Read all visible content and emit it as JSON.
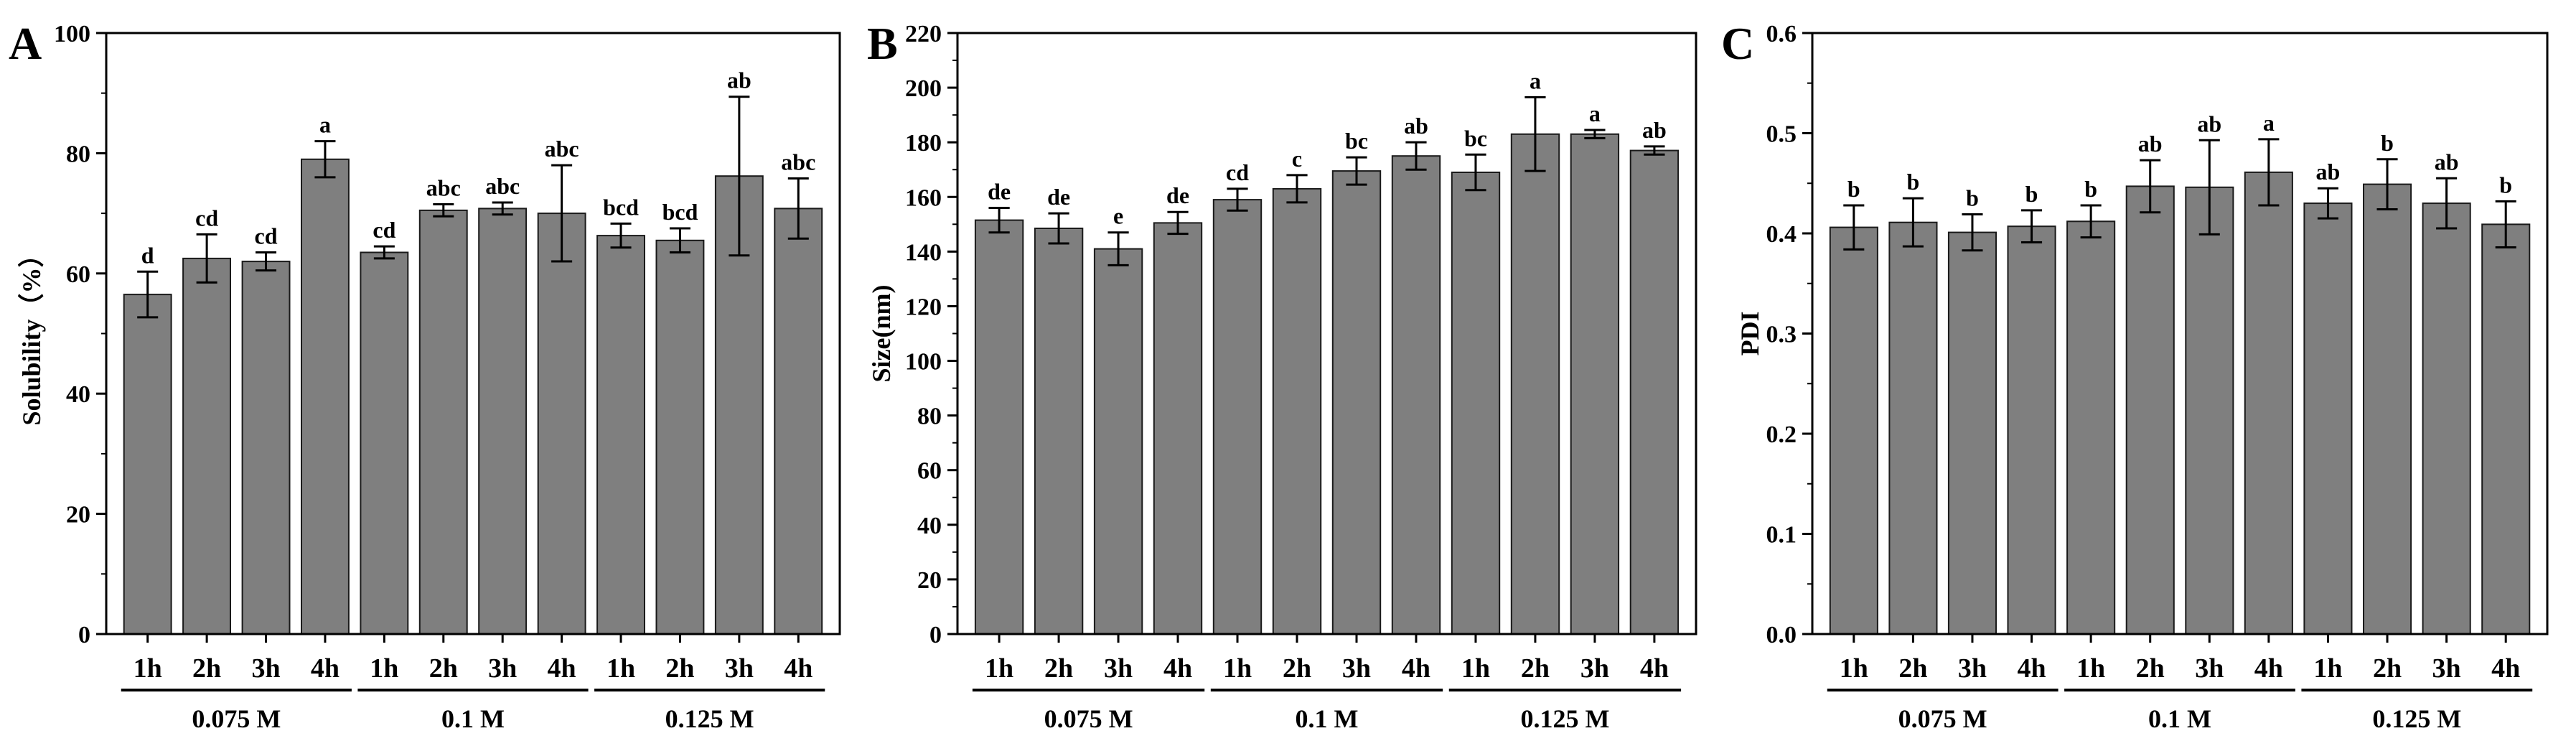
{
  "chart_data": [
    {
      "type": "bar",
      "panel": "A",
      "ylabel": "Solubility（%）",
      "ylim": [
        0,
        100
      ],
      "yticks": [
        "0",
        "20",
        "40",
        "60",
        "80",
        "100"
      ],
      "yticks_values": [
        0,
        20,
        40,
        60,
        80,
        100
      ],
      "minor_step": 10,
      "categories": [
        "1h",
        "2h",
        "3h",
        "4h",
        "1h",
        "2h",
        "3h",
        "4h",
        "1h",
        "2h",
        "3h",
        "4h"
      ],
      "groups": [
        {
          "label": "0.075 M",
          "start": 0,
          "end": 3
        },
        {
          "label": "0.1 M",
          "start": 4,
          "end": 7
        },
        {
          "label": "0.125 M",
          "start": 8,
          "end": 11
        }
      ],
      "values": [
        56.5,
        62.5,
        62.0,
        79.0,
        63.5,
        70.5,
        70.8,
        70.0,
        66.3,
        65.5,
        76.2,
        70.8
      ],
      "errors": [
        3.8,
        4.0,
        1.5,
        3.0,
        1.0,
        1.0,
        1.0,
        8.0,
        2.0,
        2.0,
        13.2,
        5.0
      ],
      "sig_labels": [
        "d",
        "cd",
        "cd",
        "a",
        "cd",
        "abc",
        "abc",
        "abc",
        "bcd",
        "bcd",
        "ab",
        "abc"
      ]
    },
    {
      "type": "bar",
      "panel": "B",
      "ylabel": "Size(nm)",
      "ylim": [
        0,
        220
      ],
      "yticks": [
        "0",
        "20",
        "40",
        "60",
        "80",
        "100",
        "120",
        "140",
        "160",
        "180",
        "200",
        "220"
      ],
      "yticks_values": [
        0,
        20,
        40,
        60,
        80,
        100,
        120,
        140,
        160,
        180,
        200,
        220
      ],
      "minor_step": 10,
      "categories": [
        "1h",
        "2h",
        "3h",
        "4h",
        "1h",
        "2h",
        "3h",
        "4h",
        "1h",
        "2h",
        "3h",
        "4h"
      ],
      "groups": [
        {
          "label": "0.075 M",
          "start": 0,
          "end": 3
        },
        {
          "label": "0.1 M",
          "start": 4,
          "end": 7
        },
        {
          "label": "0.125 M",
          "start": 8,
          "end": 11
        }
      ],
      "values": [
        151.5,
        148.5,
        141.0,
        150.5,
        159.0,
        163.0,
        169.5,
        175.0,
        169.0,
        183.0,
        183.0,
        177.0
      ],
      "errors": [
        4.5,
        5.5,
        6.0,
        4.0,
        4.0,
        5.0,
        5.0,
        5.0,
        6.5,
        13.5,
        1.5,
        1.5
      ],
      "sig_labels": [
        "de",
        "de",
        "e",
        "de",
        "cd",
        "c",
        "bc",
        "ab",
        "bc",
        "a",
        "a",
        "ab"
      ]
    },
    {
      "type": "bar",
      "panel": "C",
      "ylabel": "PDI",
      "ylim": [
        0,
        0.6
      ],
      "yticks": [
        "0.0",
        "0.1",
        "0.2",
        "0.3",
        "0.4",
        "0.5",
        "0.6"
      ],
      "yticks_values": [
        0,
        0.1,
        0.2,
        0.3,
        0.4,
        0.5,
        0.6
      ],
      "minor_step": 0.05,
      "categories": [
        "1h",
        "2h",
        "3h",
        "4h",
        "1h",
        "2h",
        "3h",
        "4h",
        "1h",
        "2h",
        "3h",
        "4h"
      ],
      "groups": [
        {
          "label": "0.075 M",
          "start": 0,
          "end": 3
        },
        {
          "label": "0.1 M",
          "start": 4,
          "end": 7
        },
        {
          "label": "0.125 M",
          "start": 8,
          "end": 11
        }
      ],
      "values": [
        0.406,
        0.411,
        0.401,
        0.407,
        0.412,
        0.447,
        0.446,
        0.461,
        0.43,
        0.449,
        0.43,
        0.409
      ],
      "errors": [
        0.022,
        0.024,
        0.018,
        0.016,
        0.016,
        0.026,
        0.047,
        0.033,
        0.015,
        0.025,
        0.025,
        0.023
      ],
      "sig_labels": [
        "b",
        "b",
        "b",
        "b",
        "b",
        "ab",
        "ab",
        "a",
        "ab",
        "b",
        "ab",
        "b"
      ]
    }
  ]
}
